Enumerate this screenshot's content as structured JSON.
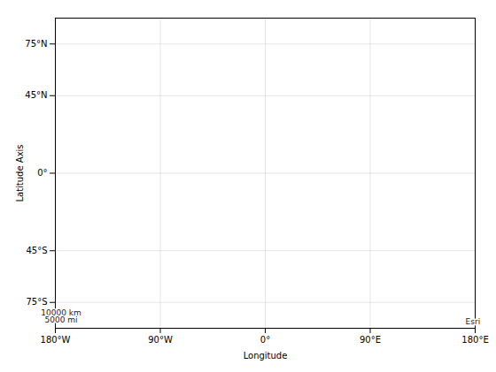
{
  "chart_data": {
    "type": "map",
    "xlabel": "Longitude",
    "ylabel": "Latitude Axis",
    "xlim": [
      -180,
      180
    ],
    "ylim": [
      -90,
      90
    ],
    "xticks": [
      {
        "value": -180,
        "label": "180°W"
      },
      {
        "value": -90,
        "label": "90°W"
      },
      {
        "value": 0,
        "label": "0°"
      },
      {
        "value": 90,
        "label": "90°E"
      },
      {
        "value": 180,
        "label": "180°E"
      }
    ],
    "yticks": [
      {
        "value": 75,
        "label": "75°N"
      },
      {
        "value": 45,
        "label": "45°N"
      },
      {
        "value": 0,
        "label": "0°"
      },
      {
        "value": -45,
        "label": "45°S"
      },
      {
        "value": -75,
        "label": "75°S"
      }
    ],
    "grid": true,
    "annotations": [
      {
        "text": "Esri",
        "x": 178,
        "y": -86
      },
      {
        "text": "10000 km",
        "x": -175,
        "y": -81.25
      },
      {
        "text": "5000 mi",
        "x": -175,
        "y": -85.25
      }
    ]
  }
}
